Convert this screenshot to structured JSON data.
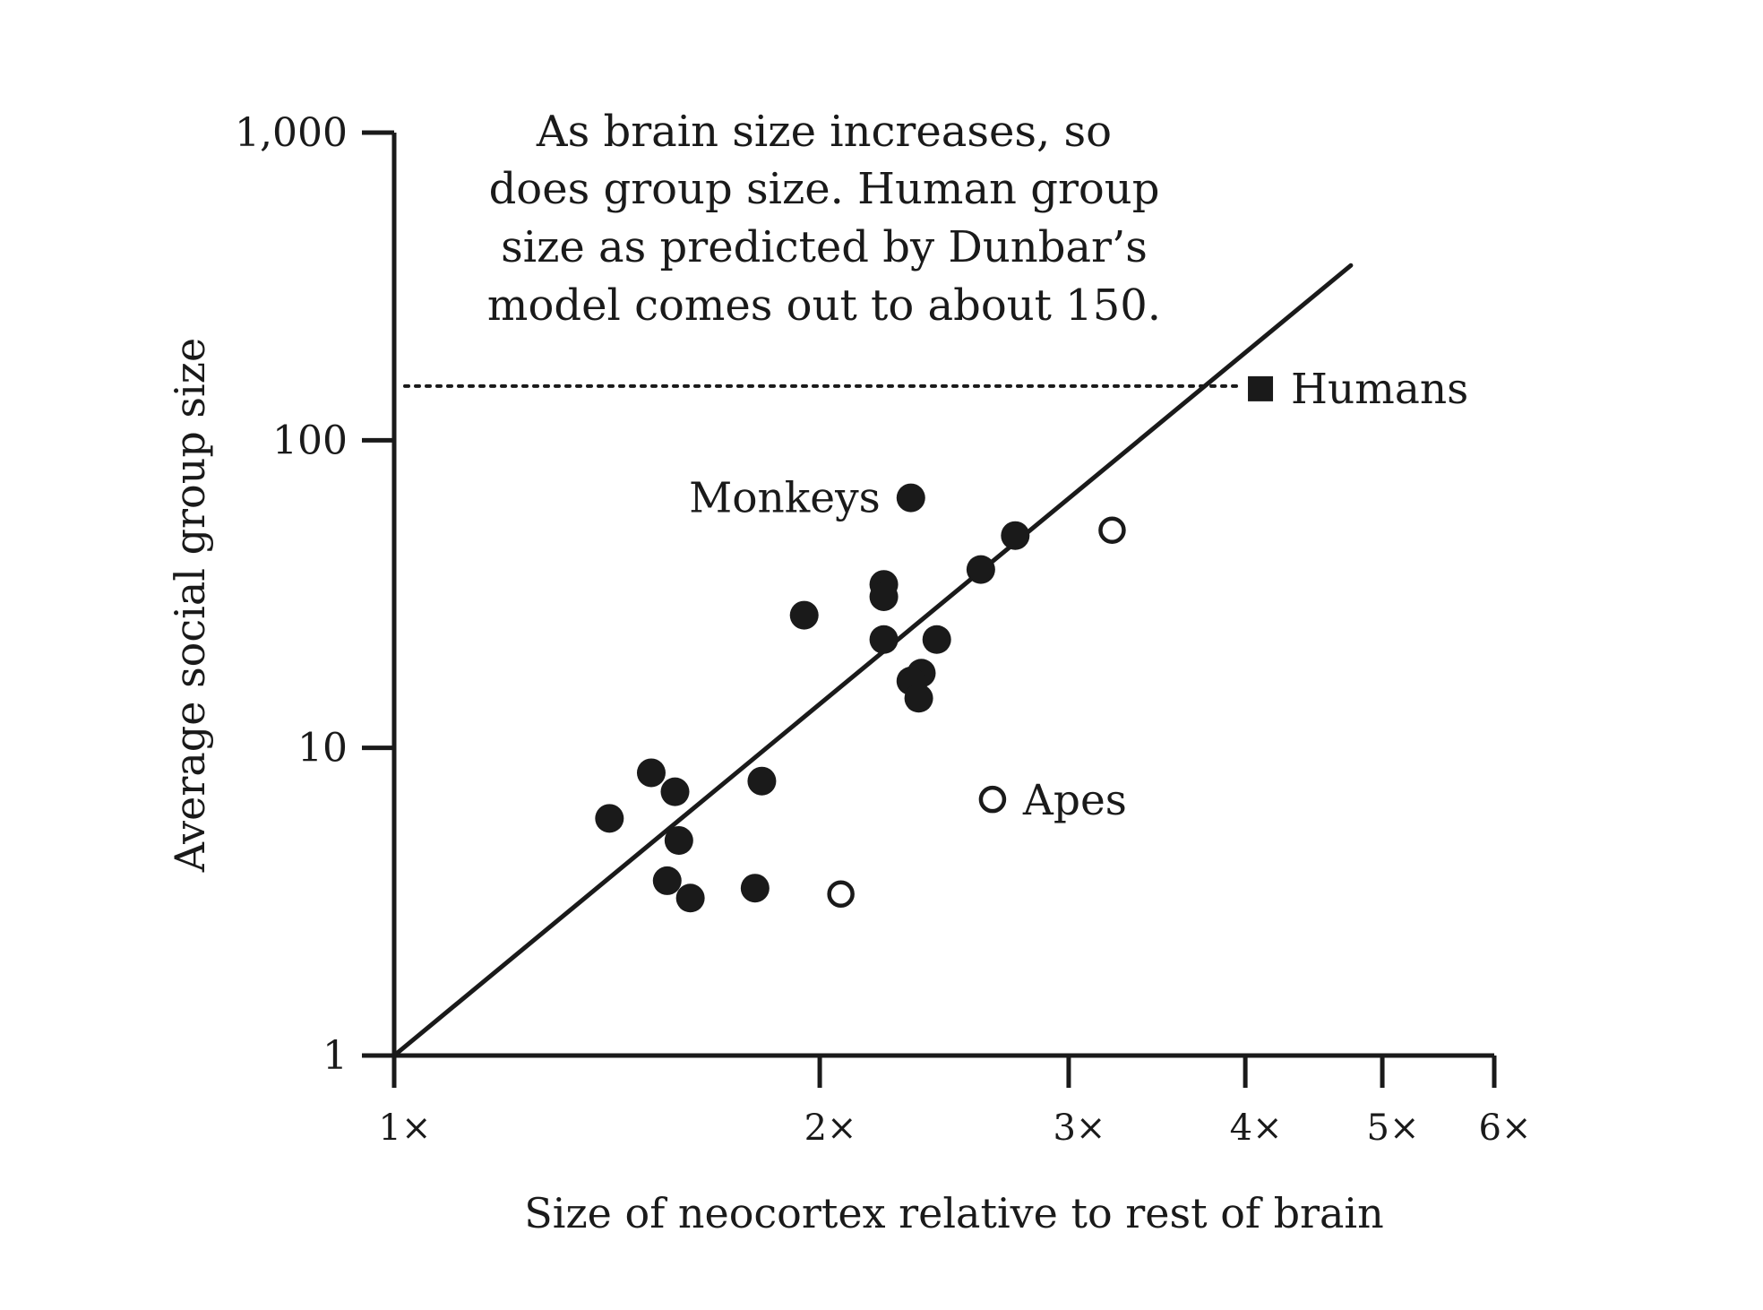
{
  "chart_data": {
    "type": "scatter",
    "title": "",
    "xlabel": "Size of neocortex relative to rest of brain",
    "ylabel": "Average social group size",
    "x_scale": "log",
    "y_scale": "log",
    "xlim": [
      1,
      6
    ],
    "ylim": [
      1,
      1000
    ],
    "x_ticks": [
      {
        "value": 1,
        "label": "1×"
      },
      {
        "value": 2,
        "label": "2×"
      },
      {
        "value": 3,
        "label": "3×"
      },
      {
        "value": 4,
        "label": "4×"
      },
      {
        "value": 5,
        "label": "5×"
      },
      {
        "value": 6,
        "label": "6×"
      }
    ],
    "y_ticks": [
      {
        "value": 1,
        "label": "1"
      },
      {
        "value": 10,
        "label": "10"
      },
      {
        "value": 100,
        "label": "100"
      },
      {
        "value": 1000,
        "label": "1,000"
      }
    ],
    "grid": false,
    "annotation_lines": [
      "As brain size increases, so",
      "does group size. Human group",
      "size as predicted by Dunbar’s",
      "model comes out to about 150."
    ],
    "reference_line": {
      "y": 150,
      "style": "dotted"
    },
    "regression_line": {
      "x": [
        1,
        4.75
      ],
      "y": [
        1,
        370
      ]
    },
    "series": [
      {
        "name": "Monkeys",
        "marker": "filled-circle",
        "points": [
          {
            "x": 2.32,
            "y": 65
          },
          {
            "x": 2.75,
            "y": 49
          },
          {
            "x": 2.6,
            "y": 38
          },
          {
            "x": 2.22,
            "y": 34
          },
          {
            "x": 2.22,
            "y": 31
          },
          {
            "x": 1.95,
            "y": 27
          },
          {
            "x": 2.22,
            "y": 22.5
          },
          {
            "x": 2.42,
            "y": 22.5
          },
          {
            "x": 2.36,
            "y": 17.5
          },
          {
            "x": 2.32,
            "y": 16.5
          },
          {
            "x": 2.35,
            "y": 14.5
          },
          {
            "x": 1.52,
            "y": 8.3
          },
          {
            "x": 1.82,
            "y": 7.8
          },
          {
            "x": 1.58,
            "y": 7.2
          },
          {
            "x": 1.42,
            "y": 5.9
          },
          {
            "x": 1.59,
            "y": 5.0
          },
          {
            "x": 1.56,
            "y": 3.7
          },
          {
            "x": 1.62,
            "y": 3.25
          },
          {
            "x": 1.8,
            "y": 3.5
          }
        ]
      },
      {
        "name": "Apes",
        "marker": "open-circle",
        "points": [
          {
            "x": 3.22,
            "y": 51
          },
          {
            "x": 2.65,
            "y": 6.8
          },
          {
            "x": 2.07,
            "y": 3.35
          }
        ]
      },
      {
        "name": "Humans",
        "marker": "filled-square",
        "points": [
          {
            "x": 4.1,
            "y": 147
          }
        ]
      }
    ]
  }
}
